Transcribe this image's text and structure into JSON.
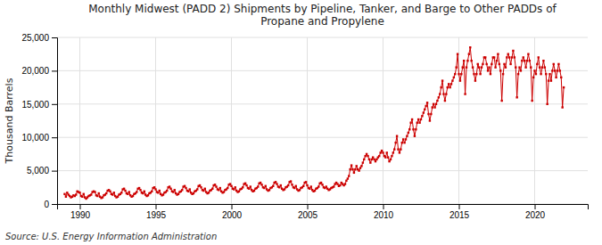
{
  "chart_data": {
    "type": "line",
    "title": "Monthly Midwest (PADD 2) Shipments by Pipeline, Tanker, and Barge to Other PADDs of\nPropane and Propylene",
    "ylabel": "Thousand Barrels",
    "source": "Source: U.S. Energy Information Administration",
    "color": "#cc0000",
    "marker": "square",
    "line_style": "solid",
    "grid": true,
    "xlim": [
      1988.5,
      2023.5
    ],
    "xticks": [
      1990,
      1995,
      2000,
      2005,
      2010,
      2015,
      2020
    ],
    "ylim": [
      0,
      25000
    ],
    "yticks": [
      0,
      {
        "value": 5000,
        "label": "5,000"
      },
      {
        "value": 10000,
        "label": "10,000"
      },
      {
        "value": 15000,
        "label": "15,000"
      },
      {
        "value": 20000,
        "label": "20,000"
      },
      {
        "value": 25000,
        "label": "25,000"
      }
    ],
    "x": [
      1989,
      1989.0833333333,
      1989.1666666667,
      1989.25,
      1989.3333333333,
      1989.4166666667,
      1989.5,
      1989.5833333333,
      1989.6666666667,
      1989.75,
      1989.8333333333,
      1989.9166666667,
      1990,
      1990.0833333333,
      1990.1666666667,
      1990.25,
      1990.3333333333,
      1990.4166666667,
      1990.5,
      1990.5833333333,
      1990.6666666667,
      1990.75,
      1990.8333333333,
      1990.9166666667,
      1991,
      1991.0833333333,
      1991.1666666667,
      1991.25,
      1991.3333333333,
      1991.4166666667,
      1991.5,
      1991.5833333333,
      1991.6666666667,
      1991.75,
      1991.8333333333,
      1991.9166666667,
      1992,
      1992.0833333333,
      1992.1666666667,
      1992.25,
      1992.3333333333,
      1992.4166666667,
      1992.5,
      1992.5833333333,
      1992.6666666667,
      1992.75,
      1992.8333333333,
      1992.9166666667,
      1993,
      1993.0833333333,
      1993.1666666667,
      1993.25,
      1993.3333333333,
      1993.4166666667,
      1993.5,
      1993.5833333333,
      1993.6666666667,
      1993.75,
      1993.8333333333,
      1993.9166666667,
      1994,
      1994.0833333333,
      1994.1666666667,
      1994.25,
      1994.3333333333,
      1994.4166666667,
      1994.5,
      1994.5833333333,
      1994.6666666667,
      1994.75,
      1994.8333333333,
      1994.9166666667,
      1995,
      1995.0833333333,
      1995.1666666667,
      1995.25,
      1995.3333333333,
      1995.4166666667,
      1995.5,
      1995.5833333333,
      1995.6666666667,
      1995.75,
      1995.8333333333,
      1995.9166666667,
      1996,
      1996.0833333333,
      1996.1666666667,
      1996.25,
      1996.3333333333,
      1996.4166666667,
      1996.5,
      1996.5833333333,
      1996.6666666667,
      1996.75,
      1996.8333333333,
      1996.9166666667,
      1997,
      1997.0833333333,
      1997.1666666667,
      1997.25,
      1997.3333333333,
      1997.4166666667,
      1997.5,
      1997.5833333333,
      1997.6666666667,
      1997.75,
      1997.8333333333,
      1997.9166666667,
      1998,
      1998.0833333333,
      1998.1666666667,
      1998.25,
      1998.3333333333,
      1998.4166666667,
      1998.5,
      1998.5833333333,
      1998.6666666667,
      1998.75,
      1998.8333333333,
      1998.9166666667,
      1999,
      1999.0833333333,
      1999.1666666667,
      1999.25,
      1999.3333333333,
      1999.4166666667,
      1999.5,
      1999.5833333333,
      1999.6666666667,
      1999.75,
      1999.8333333333,
      1999.9166666667,
      2000,
      2000.0833333333,
      2000.1666666667,
      2000.25,
      2000.3333333333,
      2000.4166666667,
      2000.5,
      2000.5833333333,
      2000.6666666667,
      2000.75,
      2000.8333333333,
      2000.9166666667,
      2001,
      2001.0833333333,
      2001.1666666667,
      2001.25,
      2001.3333333333,
      2001.4166666667,
      2001.5,
      2001.5833333333,
      2001.6666666667,
      2001.75,
      2001.8333333333,
      2001.9166666667,
      2002,
      2002.0833333333,
      2002.1666666667,
      2002.25,
      2002.3333333333,
      2002.4166666667,
      2002.5,
      2002.5833333333,
      2002.6666666667,
      2002.75,
      2002.8333333333,
      2002.9166666667,
      2003,
      2003.0833333333,
      2003.1666666667,
      2003.25,
      2003.3333333333,
      2003.4166666667,
      2003.5,
      2003.5833333333,
      2003.6666666667,
      2003.75,
      2003.8333333333,
      2003.9166666667,
      2004,
      2004.0833333333,
      2004.1666666667,
      2004.25,
      2004.3333333333,
      2004.4166666667,
      2004.5,
      2004.5833333333,
      2004.6666666667,
      2004.75,
      2004.8333333333,
      2004.9166666667,
      2005,
      2005.0833333333,
      2005.1666666667,
      2005.25,
      2005.3333333333,
      2005.4166666667,
      2005.5,
      2005.5833333333,
      2005.6666666667,
      2005.75,
      2005.8333333333,
      2005.9166666667,
      2006,
      2006.0833333333,
      2006.1666666667,
      2006.25,
      2006.3333333333,
      2006.4166666667,
      2006.5,
      2006.5833333333,
      2006.6666666667,
      2006.75,
      2006.8333333333,
      2006.9166666667,
      2007,
      2007.0833333333,
      2007.1666666667,
      2007.25,
      2007.3333333333,
      2007.4166666667,
      2007.5,
      2007.5833333333,
      2007.6666666667,
      2007.75,
      2007.8333333333,
      2007.9166666667,
      2008,
      2008.0833333333,
      2008.1666666667,
      2008.25,
      2008.3333333333,
      2008.4166666667,
      2008.5,
      2008.5833333333,
      2008.6666666667,
      2008.75,
      2008.8333333333,
      2008.9166666667,
      2009,
      2009.0833333333,
      2009.1666666667,
      2009.25,
      2009.3333333333,
      2009.4166666667,
      2009.5,
      2009.5833333333,
      2009.6666666667,
      2009.75,
      2009.8333333333,
      2009.9166666667,
      2010,
      2010.0833333333,
      2010.1666666667,
      2010.25,
      2010.3333333333,
      2010.4166666667,
      2010.5,
      2010.5833333333,
      2010.6666666667,
      2010.75,
      2010.8333333333,
      2010.9166666667,
      2011,
      2011.0833333333,
      2011.1666666667,
      2011.25,
      2011.3333333333,
      2011.4166666667,
      2011.5,
      2011.5833333333,
      2011.6666666667,
      2011.75,
      2011.8333333333,
      2011.9166666667,
      2012,
      2012.0833333333,
      2012.1666666667,
      2012.25,
      2012.3333333333,
      2012.4166666667,
      2012.5,
      2012.5833333333,
      2012.6666666667,
      2012.75,
      2012.8333333333,
      2012.9166666667,
      2013,
      2013.0833333333,
      2013.1666666667,
      2013.25,
      2013.3333333333,
      2013.4166666667,
      2013.5,
      2013.5833333333,
      2013.6666666667,
      2013.75,
      2013.8333333333,
      2013.9166666667,
      2014,
      2014.0833333333,
      2014.1666666667,
      2014.25,
      2014.3333333333,
      2014.4166666667,
      2014.5,
      2014.5833333333,
      2014.6666666667,
      2014.75,
      2014.8333333333,
      2014.9166666667,
      2015,
      2015.0833333333,
      2015.1666666667,
      2015.25,
      2015.3333333333,
      2015.4166666667,
      2015.5,
      2015.5833333333,
      2015.6666666667,
      2015.75,
      2015.8333333333,
      2015.9166666667,
      2016,
      2016.0833333333,
      2016.1666666667,
      2016.25,
      2016.3333333333,
      2016.4166666667,
      2016.5,
      2016.5833333333,
      2016.6666666667,
      2016.75,
      2016.8333333333,
      2016.9166666667,
      2017,
      2017.0833333333,
      2017.1666666667,
      2017.25,
      2017.3333333333,
      2017.4166666667,
      2017.5,
      2017.5833333333,
      2017.6666666667,
      2017.75,
      2017.8333333333,
      2017.9166666667,
      2018,
      2018.0833333333,
      2018.1666666667,
      2018.25,
      2018.3333333333,
      2018.4166666667,
      2018.5,
      2018.5833333333,
      2018.6666666667,
      2018.75,
      2018.8333333333,
      2018.9166666667,
      2019,
      2019.0833333333,
      2019.1666666667,
      2019.25,
      2019.3333333333,
      2019.4166666667,
      2019.5,
      2019.5833333333,
      2019.6666666667,
      2019.75,
      2019.8333333333,
      2019.9166666667,
      2020,
      2020.0833333333,
      2020.1666666667,
      2020.25,
      2020.3333333333,
      2020.4166666667,
      2020.5,
      2020.5833333333,
      2020.6666666667,
      2020.75,
      2020.8333333333,
      2020.9166666667,
      2021,
      2021.0833333333,
      2021.1666666667,
      2021.25,
      2021.3333333333,
      2021.4166666667,
      2021.5,
      2021.5833333333,
      2021.6666666667,
      2021.75,
      2021.8333333333,
      2021.9166666667
    ],
    "values": [
      1500,
      1100,
      1700,
      1400,
      1200,
      1000,
      1100,
      1300,
      1200,
      1400,
      1900,
      1800,
      1700,
      1200,
      1100,
      1500,
      1000,
      800,
      1000,
      1200,
      1300,
      1400,
      1800,
      1900,
      1800,
      1300,
      1200,
      1600,
      1100,
      900,
      1000,
      1300,
      1400,
      1600,
      2000,
      2100,
      1900,
      1500,
      1400,
      1700,
      1200,
      1000,
      1100,
      1400,
      1500,
      1700,
      2200,
      2300,
      2000,
      1600,
      1500,
      1800,
      1300,
      1100,
      1200,
      1500,
      1600,
      1800,
      2300,
      2400,
      2100,
      1700,
      1600,
      1900,
      1400,
      1200,
      1300,
      1600,
      1700,
      1900,
      2400,
      2500,
      2200,
      1800,
      1700,
      2000,
      1500,
      1300,
      1400,
      1700,
      1800,
      2000,
      2500,
      2600,
      2300,
      1900,
      1800,
      2100,
      1600,
      1400,
      1500,
      1800,
      1900,
      2100,
      2600,
      2700,
      2400,
      2000,
      1900,
      2200,
      1700,
      1500,
      1600,
      1900,
      2000,
      2200,
      2700,
      2800,
      2500,
      2100,
      2000,
      2300,
      1800,
      1600,
      1700,
      2000,
      2100,
      2300,
      2800,
      2900,
      2600,
      2200,
      2100,
      2400,
      1900,
      1700,
      1800,
      2100,
      2200,
      2400,
      2900,
      3000,
      2700,
      2300,
      2200,
      2500,
      2000,
      1800,
      1900,
      2200,
      2300,
      2500,
      3000,
      3100,
      2800,
      2400,
      2300,
      2600,
      2100,
      1900,
      2000,
      2300,
      2400,
      2600,
      3100,
      3200,
      2900,
      2500,
      2400,
      2700,
      2200,
      2000,
      2100,
      2400,
      2500,
      2700,
      3200,
      3300,
      3000,
      2600,
      2500,
      2800,
      2300,
      2100,
      2200,
      2500,
      2600,
      2800,
      3300,
      3400,
      2900,
      2500,
      2400,
      2700,
      2200,
      2000,
      2100,
      2400,
      2500,
      2700,
      3200,
      3300,
      2800,
      2400,
      2300,
      2600,
      2100,
      1900,
      2000,
      2300,
      2400,
      2600,
      3100,
      3200,
      2900,
      2500,
      2400,
      2600,
      2300,
      2100,
      2200,
      2400,
      2500,
      2600,
      3000,
      3200,
      3000,
      2700,
      2800,
      3200,
      3000,
      2800,
      3000,
      3500,
      3800,
      4200,
      5200,
      5800,
      5200,
      4700,
      5200,
      5700,
      5200,
      5000,
      5400,
      5700,
      6200,
      6700,
      7200,
      7500,
      7200,
      6700,
      6200,
      6700,
      7000,
      6700,
      6400,
      6700,
      7000,
      7200,
      7700,
      8000,
      7700,
      7200,
      7000,
      7700,
      7000,
      6400,
      6700,
      7200,
      7700,
      8200,
      9200,
      10200,
      8200,
      7700,
      8200,
      9200,
      9700,
      9200,
      9700,
      10200,
      10700,
      11200,
      12200,
      12700,
      11200,
      10200,
      11200,
      12200,
      12700,
      12200,
      12700,
      13200,
      13700,
      14200,
      14700,
      15200,
      13500,
      12500,
      13500,
      14500,
      15000,
      14500,
      15000,
      15500,
      16000,
      16500,
      17500,
      18500,
      16500,
      15500,
      16500,
      17500,
      18000,
      17500,
      18000,
      18500,
      19000,
      19500,
      20500,
      22500,
      19500,
      18500,
      19500,
      20500,
      21500,
      16500,
      20500,
      21500,
      22500,
      23500,
      21500,
      20500,
      19500,
      18500,
      19500,
      21000,
      20500,
      19500,
      20500,
      21000,
      22000,
      22000,
      21000,
      20000,
      20500,
      19500,
      21000,
      22000,
      22000,
      20500,
      21500,
      22500,
      21000,
      20000,
      15500,
      19500,
      21000,
      20500,
      22000,
      22500,
      22000,
      21000,
      22000,
      23000,
      22000,
      20500,
      16000,
      19500,
      20500,
      20000,
      21500,
      22000,
      21500,
      20500,
      21500,
      22500,
      21500,
      20500,
      15500,
      19000,
      20000,
      19500,
      21000,
      22000,
      20500,
      19500,
      20500,
      21500,
      20500,
      19500,
      15000,
      18500,
      19500,
      18500,
      20000,
      21000,
      20000,
      19000,
      20000,
      21000,
      20000,
      19000,
      14500,
      17500
    ]
  }
}
